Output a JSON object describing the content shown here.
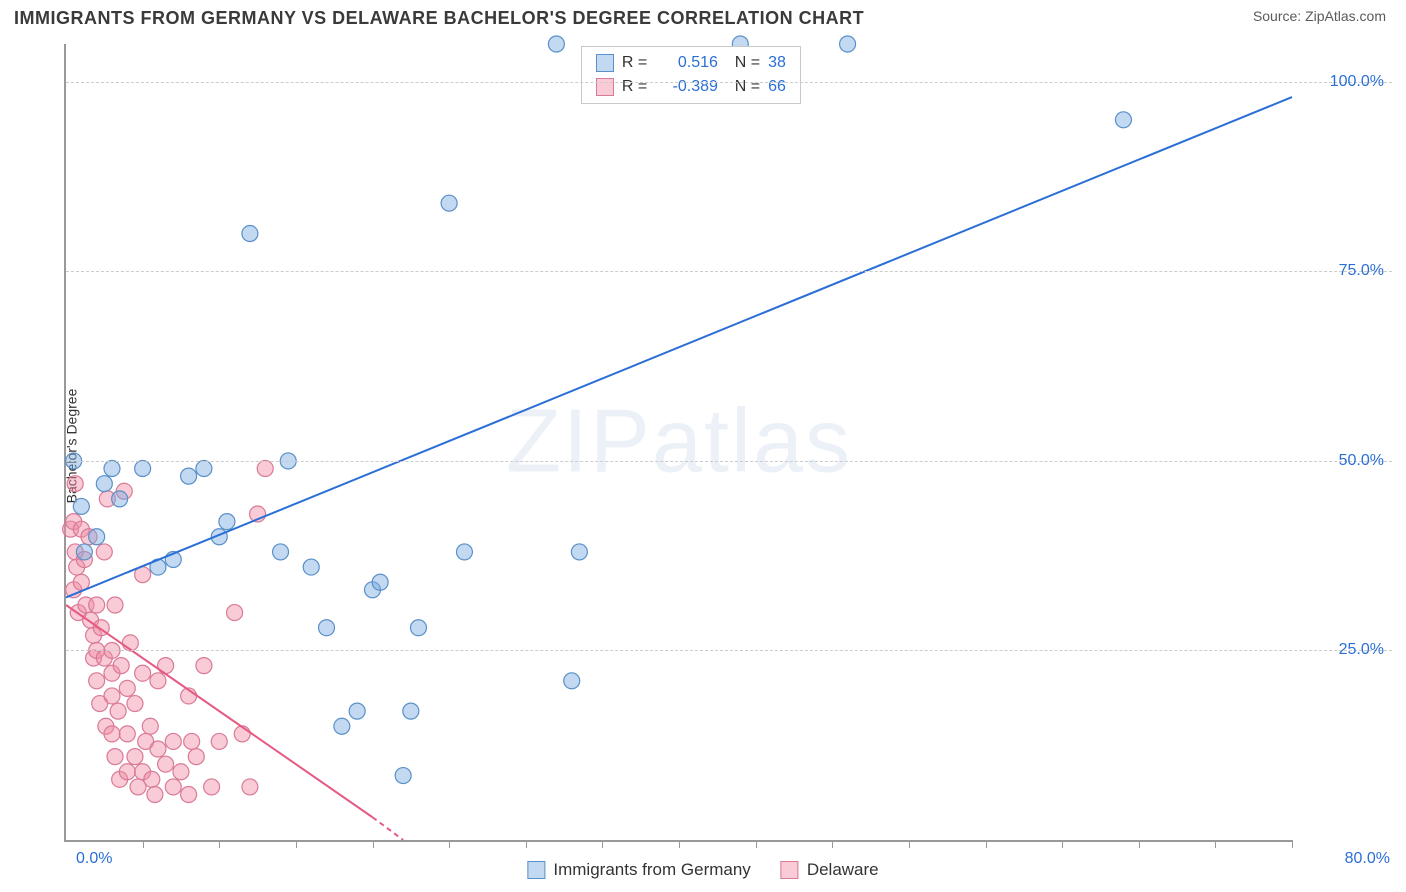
{
  "header": {
    "title": "IMMIGRANTS FROM GERMANY VS DELAWARE BACHELOR'S DEGREE CORRELATION CHART",
    "source": "Source: ZipAtlas.com"
  },
  "watermark": "ZIPatlas",
  "chart": {
    "type": "scatter",
    "y_axis_label": "Bachelor's Degree",
    "xlim": [
      0,
      80
    ],
    "ylim": [
      0,
      105
    ],
    "x_min_label": "0.0%",
    "x_max_label": "80.0%",
    "y_ticks": [
      {
        "value": 25,
        "label": "25.0%"
      },
      {
        "value": 50,
        "label": "50.0%"
      },
      {
        "value": 75,
        "label": "75.0%"
      },
      {
        "value": 100,
        "label": "100.0%"
      }
    ],
    "x_tick_count": 16,
    "grid_color": "#cccccc",
    "axis_color": "#999999",
    "background_color": "#ffffff",
    "series": [
      {
        "name": "Immigrants from Germany",
        "marker_fill": "rgba(120,170,225,0.45)",
        "marker_stroke": "#5a90c8",
        "marker_radius": 8,
        "line_color": "#2b6fd6",
        "line_width": 2,
        "r": "0.516",
        "n": "38",
        "trend": {
          "x1": 0,
          "y1": 32,
          "x2": 80,
          "y2": 98
        },
        "points": [
          [
            0.5,
            50
          ],
          [
            1,
            44
          ],
          [
            1.2,
            38
          ],
          [
            2,
            40
          ],
          [
            2.5,
            47
          ],
          [
            3,
            49
          ],
          [
            3.5,
            45
          ],
          [
            5,
            49
          ],
          [
            6,
            36
          ],
          [
            7,
            37
          ],
          [
            8,
            48
          ],
          [
            9,
            49
          ],
          [
            10,
            40
          ],
          [
            10.5,
            42
          ],
          [
            12,
            80
          ],
          [
            14,
            38
          ],
          [
            14.5,
            50
          ],
          [
            16,
            36
          ],
          [
            17,
            28
          ],
          [
            18,
            15
          ],
          [
            19,
            17
          ],
          [
            20,
            33
          ],
          [
            20.5,
            34
          ],
          [
            22,
            8.5
          ],
          [
            22.5,
            17
          ],
          [
            23,
            28
          ],
          [
            25,
            84
          ],
          [
            26,
            38
          ],
          [
            32,
            105
          ],
          [
            33,
            21
          ],
          [
            33.5,
            38
          ],
          [
            44,
            105
          ],
          [
            51,
            105
          ],
          [
            69,
            95
          ]
        ]
      },
      {
        "name": "Delaware",
        "marker_fill": "rgba(240,140,165,0.45)",
        "marker_stroke": "#d97a96",
        "marker_radius": 8,
        "line_color": "#e65a82",
        "line_width": 2,
        "r": "-0.389",
        "n": "66",
        "trend": {
          "x1": 0,
          "y1": 31,
          "x2": 20,
          "y2": 3
        },
        "trend_dashed": {
          "x1": 20,
          "y1": 3,
          "x2": 22,
          "y2": 0
        },
        "points": [
          [
            0.3,
            41
          ],
          [
            0.5,
            42
          ],
          [
            0.6,
            38
          ],
          [
            0.7,
            36
          ],
          [
            0.5,
            33
          ],
          [
            0.6,
            47
          ],
          [
            0.8,
            30
          ],
          [
            1,
            41
          ],
          [
            1,
            34
          ],
          [
            1.2,
            37
          ],
          [
            1.3,
            31
          ],
          [
            1.5,
            40
          ],
          [
            1.6,
            29
          ],
          [
            1.8,
            24
          ],
          [
            1.8,
            27
          ],
          [
            2,
            21
          ],
          [
            2,
            25
          ],
          [
            2,
            31
          ],
          [
            2.2,
            18
          ],
          [
            2.3,
            28
          ],
          [
            2.5,
            24
          ],
          [
            2.5,
            38
          ],
          [
            2.6,
            15
          ],
          [
            2.7,
            45
          ],
          [
            3,
            22
          ],
          [
            3,
            19
          ],
          [
            3,
            14
          ],
          [
            3,
            25
          ],
          [
            3.2,
            11
          ],
          [
            3.2,
            31
          ],
          [
            3.4,
            17
          ],
          [
            3.5,
            8
          ],
          [
            3.6,
            23
          ],
          [
            3.8,
            46
          ],
          [
            4,
            9
          ],
          [
            4,
            20
          ],
          [
            4,
            14
          ],
          [
            4.2,
            26
          ],
          [
            4.5,
            11
          ],
          [
            4.5,
            18
          ],
          [
            4.7,
            7
          ],
          [
            5,
            9
          ],
          [
            5,
            35
          ],
          [
            5,
            22
          ],
          [
            5.2,
            13
          ],
          [
            5.5,
            15
          ],
          [
            5.6,
            8
          ],
          [
            5.8,
            6
          ],
          [
            6,
            21
          ],
          [
            6,
            12
          ],
          [
            6.5,
            23
          ],
          [
            6.5,
            10
          ],
          [
            7,
            13
          ],
          [
            7,
            7
          ],
          [
            7.5,
            9
          ],
          [
            8,
            6
          ],
          [
            8,
            19
          ],
          [
            8.2,
            13
          ],
          [
            8.5,
            11
          ],
          [
            9,
            23
          ],
          [
            9.5,
            7
          ],
          [
            10,
            13
          ],
          [
            11,
            30
          ],
          [
            11.5,
            14
          ],
          [
            12,
            7
          ],
          [
            12.5,
            43
          ],
          [
            13,
            49
          ]
        ]
      }
    ],
    "legend_top": {
      "border_color": "#c9c9c9",
      "rows": [
        {
          "swatch_fill": "rgba(120,170,225,0.45)",
          "swatch_stroke": "#5a90c8",
          "r": "0.516",
          "n": "38"
        },
        {
          "swatch_fill": "rgba(240,140,165,0.45)",
          "swatch_stroke": "#d97a96",
          "r": "-0.389",
          "n": "66"
        }
      ]
    },
    "legend_bottom": [
      {
        "swatch_fill": "rgba(120,170,225,0.45)",
        "swatch_stroke": "#5a90c8",
        "label": "Immigrants from Germany"
      },
      {
        "swatch_fill": "rgba(240,140,165,0.45)",
        "swatch_stroke": "#d97a96",
        "label": "Delaware"
      }
    ]
  }
}
